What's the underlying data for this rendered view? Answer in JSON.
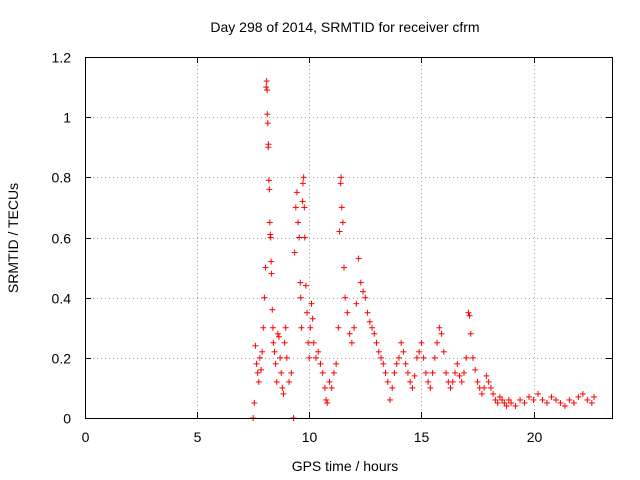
{
  "chart_data": {
    "type": "scatter",
    "title": "Day 298 of 2014, SRMTID for receiver cfrm",
    "xlabel": "GPS time / hours",
    "ylabel": "SRMTID / TECUs",
    "xlim": [
      0,
      23.5
    ],
    "ylim": [
      0,
      1.2
    ],
    "xticks": [
      0,
      5,
      10,
      15,
      20
    ],
    "yticks": [
      0,
      0.2,
      0.4,
      0.6,
      0.8,
      1,
      1.2
    ],
    "xtick_labels": [
      "0",
      "5",
      "10",
      "15",
      "20"
    ],
    "ytick_labels": [
      "0",
      "0.2",
      "0.4",
      "0.6",
      "0.8",
      "1",
      "1.2"
    ],
    "grid": true,
    "marker": "+",
    "color": "#ff0000",
    "series": [
      {
        "name": "SRMTID",
        "points": [
          [
            7.5,
            0.0
          ],
          [
            7.55,
            0.05
          ],
          [
            7.6,
            0.24
          ],
          [
            7.65,
            0.18
          ],
          [
            7.7,
            0.15
          ],
          [
            7.75,
            0.12
          ],
          [
            7.8,
            0.2
          ],
          [
            7.85,
            0.16
          ],
          [
            7.9,
            0.22
          ],
          [
            7.95,
            0.3
          ],
          [
            8.0,
            0.4
          ],
          [
            8.05,
            0.5
          ],
          [
            8.08,
            1.1
          ],
          [
            8.1,
            1.12
          ],
          [
            8.12,
            1.09
          ],
          [
            8.13,
            1.01
          ],
          [
            8.15,
            0.98
          ],
          [
            8.17,
            0.9
          ],
          [
            8.18,
            0.91
          ],
          [
            8.2,
            0.79
          ],
          [
            8.22,
            0.76
          ],
          [
            8.24,
            0.65
          ],
          [
            8.26,
            0.61
          ],
          [
            8.28,
            0.6
          ],
          [
            8.3,
            0.52
          ],
          [
            8.32,
            0.48
          ],
          [
            8.35,
            0.36
          ],
          [
            8.38,
            0.3
          ],
          [
            8.4,
            0.25
          ],
          [
            8.45,
            0.22
          ],
          [
            8.5,
            0.18
          ],
          [
            8.55,
            0.12
          ],
          [
            8.6,
            0.28
          ],
          [
            8.65,
            0.27
          ],
          [
            8.7,
            0.2
          ],
          [
            8.75,
            0.15
          ],
          [
            8.8,
            0.1
          ],
          [
            8.85,
            0.08
          ],
          [
            8.9,
            0.25
          ],
          [
            8.95,
            0.3
          ],
          [
            9.0,
            0.2
          ],
          [
            9.1,
            0.12
          ],
          [
            9.2,
            0.15
          ],
          [
            9.3,
            0.0
          ],
          [
            9.35,
            0.55
          ],
          [
            9.4,
            0.7
          ],
          [
            9.45,
            0.75
          ],
          [
            9.5,
            0.65
          ],
          [
            9.55,
            0.6
          ],
          [
            9.6,
            0.45
          ],
          [
            9.62,
            0.4
          ],
          [
            9.65,
            0.3
          ],
          [
            9.7,
            0.72
          ],
          [
            9.72,
            0.78
          ],
          [
            9.75,
            0.8
          ],
          [
            9.78,
            0.7
          ],
          [
            9.8,
            0.6
          ],
          [
            9.85,
            0.44
          ],
          [
            9.9,
            0.35
          ],
          [
            9.95,
            0.25
          ],
          [
            10.0,
            0.2
          ],
          [
            10.05,
            0.3
          ],
          [
            10.1,
            0.38
          ],
          [
            10.15,
            0.33
          ],
          [
            10.2,
            0.25
          ],
          [
            10.3,
            0.2
          ],
          [
            10.4,
            0.22
          ],
          [
            10.5,
            0.18
          ],
          [
            10.6,
            0.15
          ],
          [
            10.7,
            0.1
          ],
          [
            10.75,
            0.06
          ],
          [
            10.8,
            0.05
          ],
          [
            10.9,
            0.12
          ],
          [
            11.0,
            0.1
          ],
          [
            11.1,
            0.15
          ],
          [
            11.2,
            0.18
          ],
          [
            11.3,
            0.3
          ],
          [
            11.35,
            0.62
          ],
          [
            11.4,
            0.78
          ],
          [
            11.42,
            0.8
          ],
          [
            11.45,
            0.7
          ],
          [
            11.5,
            0.65
          ],
          [
            11.55,
            0.5
          ],
          [
            11.6,
            0.4
          ],
          [
            11.7,
            0.35
          ],
          [
            11.8,
            0.28
          ],
          [
            11.9,
            0.25
          ],
          [
            12.0,
            0.3
          ],
          [
            12.1,
            0.38
          ],
          [
            12.2,
            0.53
          ],
          [
            12.3,
            0.45
          ],
          [
            12.4,
            0.42
          ],
          [
            12.5,
            0.4
          ],
          [
            12.6,
            0.35
          ],
          [
            12.7,
            0.32
          ],
          [
            12.8,
            0.3
          ],
          [
            12.9,
            0.28
          ],
          [
            13.0,
            0.25
          ],
          [
            13.1,
            0.22
          ],
          [
            13.2,
            0.2
          ],
          [
            13.3,
            0.18
          ],
          [
            13.4,
            0.15
          ],
          [
            13.5,
            0.12
          ],
          [
            13.6,
            0.06
          ],
          [
            13.7,
            0.1
          ],
          [
            13.8,
            0.15
          ],
          [
            13.9,
            0.18
          ],
          [
            14.0,
            0.2
          ],
          [
            14.1,
            0.25
          ],
          [
            14.2,
            0.22
          ],
          [
            14.3,
            0.18
          ],
          [
            14.4,
            0.15
          ],
          [
            14.5,
            0.12
          ],
          [
            14.6,
            0.1
          ],
          [
            14.7,
            0.14
          ],
          [
            14.8,
            0.2
          ],
          [
            14.9,
            0.22
          ],
          [
            15.0,
            0.25
          ],
          [
            15.1,
            0.2
          ],
          [
            15.2,
            0.15
          ],
          [
            15.3,
            0.12
          ],
          [
            15.4,
            0.1
          ],
          [
            15.5,
            0.15
          ],
          [
            15.6,
            0.2
          ],
          [
            15.7,
            0.25
          ],
          [
            15.8,
            0.3
          ],
          [
            15.9,
            0.28
          ],
          [
            16.0,
            0.22
          ],
          [
            16.1,
            0.15
          ],
          [
            16.2,
            0.12
          ],
          [
            16.3,
            0.1
          ],
          [
            16.4,
            0.12
          ],
          [
            16.5,
            0.15
          ],
          [
            16.6,
            0.18
          ],
          [
            16.7,
            0.14
          ],
          [
            16.8,
            0.12
          ],
          [
            16.9,
            0.15
          ],
          [
            17.0,
            0.2
          ],
          [
            17.1,
            0.35
          ],
          [
            17.15,
            0.34
          ],
          [
            17.2,
            0.28
          ],
          [
            17.3,
            0.2
          ],
          [
            17.4,
            0.16
          ],
          [
            17.5,
            0.12
          ],
          [
            17.6,
            0.1
          ],
          [
            17.7,
            0.08
          ],
          [
            17.8,
            0.1
          ],
          [
            17.9,
            0.14
          ],
          [
            18.0,
            0.12
          ],
          [
            18.1,
            0.1
          ],
          [
            18.2,
            0.08
          ],
          [
            18.3,
            0.06
          ],
          [
            18.4,
            0.05
          ],
          [
            18.5,
            0.07
          ],
          [
            18.6,
            0.06
          ],
          [
            18.7,
            0.05
          ],
          [
            18.8,
            0.04
          ],
          [
            18.9,
            0.06
          ],
          [
            19.0,
            0.05
          ],
          [
            19.2,
            0.04
          ],
          [
            19.4,
            0.06
          ],
          [
            19.6,
            0.05
          ],
          [
            19.8,
            0.07
          ],
          [
            20.0,
            0.06
          ],
          [
            20.2,
            0.08
          ],
          [
            20.4,
            0.06
          ],
          [
            20.6,
            0.05
          ],
          [
            20.8,
            0.07
          ],
          [
            21.0,
            0.06
          ],
          [
            21.2,
            0.05
          ],
          [
            21.4,
            0.04
          ],
          [
            21.6,
            0.06
          ],
          [
            21.8,
            0.05
          ],
          [
            22.0,
            0.07
          ],
          [
            22.2,
            0.08
          ],
          [
            22.4,
            0.06
          ],
          [
            22.6,
            0.05
          ],
          [
            22.7,
            0.07
          ]
        ]
      }
    ]
  }
}
